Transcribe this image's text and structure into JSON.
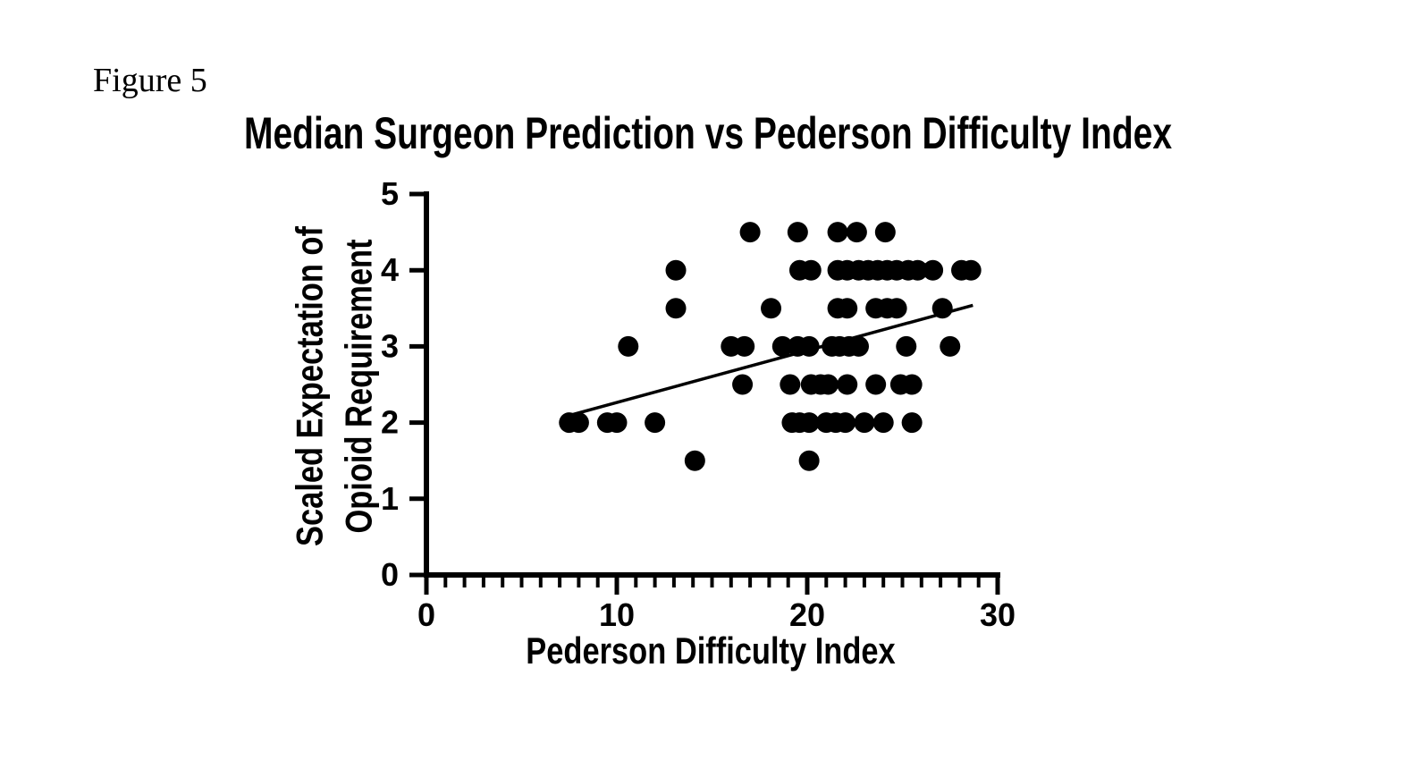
{
  "figure_label": "Figure 5",
  "chart_data": {
    "type": "scatter",
    "title": "Median Surgeon Prediction vs Pederson Difficulty Index",
    "xlabel": "Pederson Difficulty Index",
    "ylabel": "Scaled Expectation of\nOpioid Requirement",
    "xlim": [
      0,
      30
    ],
    "ylim": [
      0,
      5
    ],
    "x_major_ticks": [
      0,
      10,
      20,
      30
    ],
    "x_minor_tick_step": 1,
    "y_ticks": [
      0,
      1,
      2,
      3,
      4,
      5
    ],
    "grid": false,
    "legend": false,
    "axis_color": "#000000",
    "marker_color": "#000000",
    "points": [
      [
        17.0,
        4.5
      ],
      [
        19.5,
        4.5
      ],
      [
        21.6,
        4.5
      ],
      [
        22.6,
        4.5
      ],
      [
        24.1,
        4.5
      ],
      [
        13.1,
        4
      ],
      [
        19.6,
        4
      ],
      [
        20.2,
        4
      ],
      [
        21.6,
        4
      ],
      [
        22.1,
        4
      ],
      [
        22.7,
        4
      ],
      [
        23.2,
        4
      ],
      [
        23.7,
        4
      ],
      [
        24.2,
        4
      ],
      [
        24.7,
        4
      ],
      [
        25.3,
        4
      ],
      [
        25.8,
        4
      ],
      [
        26.6,
        4
      ],
      [
        28.1,
        4
      ],
      [
        28.6,
        4
      ],
      [
        13.1,
        3.5
      ],
      [
        18.1,
        3.5
      ],
      [
        21.6,
        3.5
      ],
      [
        22.1,
        3.5
      ],
      [
        23.6,
        3.5
      ],
      [
        24.2,
        3.5
      ],
      [
        24.7,
        3.5
      ],
      [
        27.1,
        3.5
      ],
      [
        10.6,
        3
      ],
      [
        16.0,
        3
      ],
      [
        16.7,
        3
      ],
      [
        18.7,
        3
      ],
      [
        19.5,
        3
      ],
      [
        20.1,
        3
      ],
      [
        21.3,
        3
      ],
      [
        21.7,
        3
      ],
      [
        22.2,
        3
      ],
      [
        22.7,
        3
      ],
      [
        25.2,
        3
      ],
      [
        27.5,
        3
      ],
      [
        16.6,
        2.5
      ],
      [
        19.1,
        2.5
      ],
      [
        20.2,
        2.5
      ],
      [
        20.7,
        2.5
      ],
      [
        21.1,
        2.5
      ],
      [
        22.1,
        2.5
      ],
      [
        23.6,
        2.5
      ],
      [
        24.9,
        2.5
      ],
      [
        25.5,
        2.5
      ],
      [
        7.5,
        2
      ],
      [
        8.0,
        2
      ],
      [
        9.5,
        2
      ],
      [
        10.0,
        2
      ],
      [
        12.0,
        2
      ],
      [
        19.2,
        2
      ],
      [
        19.6,
        2
      ],
      [
        20.1,
        2
      ],
      [
        21.0,
        2
      ],
      [
        21.5,
        2
      ],
      [
        22.0,
        2
      ],
      [
        23.0,
        2
      ],
      [
        24.0,
        2
      ],
      [
        25.5,
        2
      ],
      [
        14.1,
        1.5
      ],
      [
        20.1,
        1.5
      ]
    ],
    "trendline": {
      "x1": 7.6,
      "y1": 2.1,
      "x2": 28.7,
      "y2": 3.54
    }
  }
}
